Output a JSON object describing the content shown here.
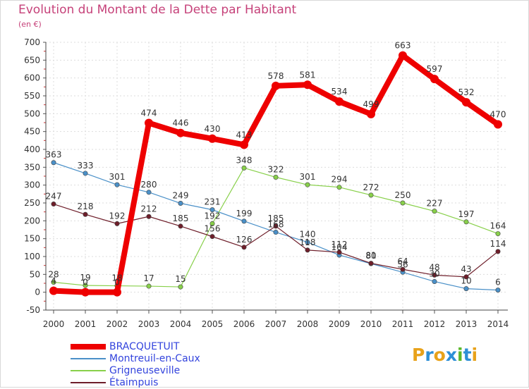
{
  "title": "Evolution du Montant de la Dette par Habitant",
  "subtitle": "(en €)",
  "logo": {
    "text": "Proxiti",
    "colors": [
      "#e8a21a",
      "#2e8fd6",
      "#e8a21a",
      "#2e8fd6",
      "#5ab82a",
      "#2e8fd6",
      "#e8a21a"
    ]
  },
  "chart_data": {
    "type": "line",
    "title": "Evolution du Montant de la Dette par Habitant",
    "subtitle": "(en €)",
    "xlabel": "",
    "ylabel": "",
    "ylim": [
      -50,
      700
    ],
    "yticks": [
      -50,
      0,
      50,
      100,
      150,
      200,
      250,
      300,
      350,
      400,
      450,
      500,
      550,
      600,
      650,
      700
    ],
    "x": [
      "2000",
      "2001",
      "2002",
      "2003",
      "2004",
      "2005",
      "2006",
      "2007",
      "2008",
      "2009",
      "2010",
      "2011",
      "2012",
      "2013",
      "2014"
    ],
    "grid": true,
    "legend_position": "bottom-left",
    "series": [
      {
        "name": "BRACQUETUIT",
        "color": "#ee0000",
        "values": [
          4,
          0,
          0,
          474,
          446,
          430,
          413,
          578,
          581,
          534,
          499,
          663,
          597,
          532,
          470
        ]
      },
      {
        "name": "Montreuil-en-Caux",
        "color": "#4a90c8",
        "values": [
          363,
          333,
          301,
          280,
          249,
          231,
          199,
          168,
          140,
          104,
          80,
          56,
          30,
          10,
          6
        ]
      },
      {
        "name": "Grigneuseville",
        "color": "#88d04a",
        "values": [
          28,
          19,
          18,
          17,
          15,
          192,
          348,
          322,
          301,
          294,
          272,
          250,
          227,
          197,
          164
        ]
      },
      {
        "name": "Étaimpuis",
        "color": "#6e1e2a",
        "values": [
          247,
          218,
          192,
          212,
          185,
          156,
          126,
          185,
          118,
          112,
          81,
          64,
          48,
          43,
          114
        ]
      }
    ],
    "point_labels": [
      [
        "4",
        "0",
        "0",
        "474",
        "446",
        "430",
        "413",
        "578",
        "581",
        "534",
        "499",
        "663",
        "597",
        "532",
        "470"
      ],
      [
        "363",
        "333",
        "301",
        "280",
        "249",
        "231",
        "199",
        "168",
        "140",
        "104",
        "80",
        "56",
        "30",
        "10",
        "6"
      ],
      [
        "28",
        "19",
        "18",
        "17",
        "15",
        "192",
        "348",
        "322",
        "301",
        "294",
        "272",
        "250",
        "227",
        "197",
        "164"
      ],
      [
        "247",
        "218",
        "192",
        "212",
        "185",
        "156",
        "126",
        "185",
        "118",
        "112",
        "81",
        "64",
        "48",
        "43",
        "114"
      ]
    ]
  }
}
